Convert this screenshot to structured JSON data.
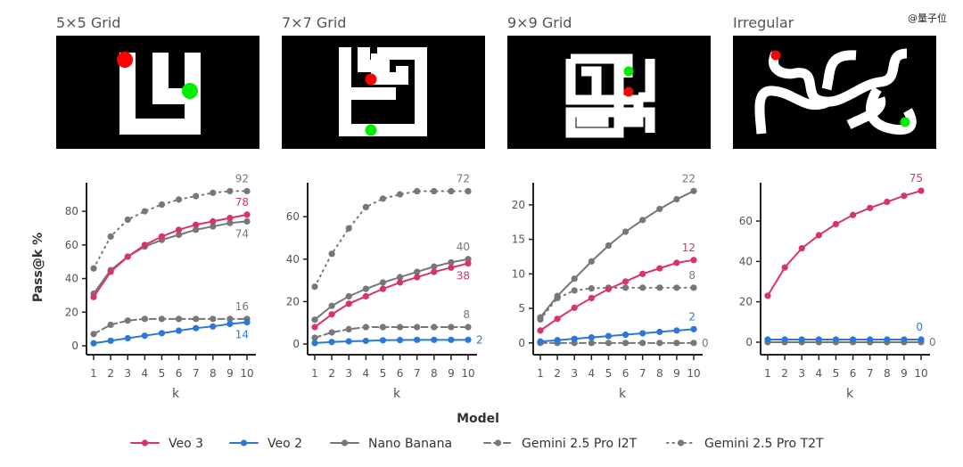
{
  "watermark": "@量子位",
  "panels": [
    {
      "title": "5×5 Grid"
    },
    {
      "title": "7×7 Grid"
    },
    {
      "title": "9×9 Grid"
    },
    {
      "title": "Irregular"
    }
  ],
  "colors": {
    "Veo 3": "#d6336f",
    "Veo 2": "#2a78d8",
    "Nano Banana": "#777777",
    "Gemini 2.5 Pro I2T": "#777777",
    "Gemini 2.5 Pro T2T": "#777777",
    "start_marker": "#ff0000",
    "goal_marker": "#00ee00"
  },
  "chart_data": [
    {
      "type": "line",
      "title": "5×5 Grid",
      "xlabel": "k",
      "ylabel": "Pass@k %",
      "x": [
        1,
        2,
        3,
        4,
        5,
        6,
        7,
        8,
        9,
        10
      ],
      "ylim": [
        -5.3,
        97
      ],
      "yticks": [
        0,
        20,
        40,
        60,
        80
      ],
      "series": [
        {
          "name": "Gemini 2.5 Pro T2T",
          "values": [
            46,
            65,
            75,
            80,
            84,
            87,
            89,
            91,
            92,
            92
          ],
          "end_label": "92"
        },
        {
          "name": "Gemini 2.5 Pro I2T",
          "values": [
            7,
            12.5,
            15,
            16,
            16,
            16,
            16,
            16,
            16,
            16
          ],
          "end_label": "16"
        },
        {
          "name": "Nano Banana",
          "values": [
            31,
            45,
            53,
            59,
            63,
            66,
            69,
            71,
            73,
            74
          ],
          "end_label": "74"
        },
        {
          "name": "Veo 2",
          "values": [
            1.5,
            3,
            4.5,
            6,
            7.5,
            9,
            10.5,
            11.5,
            13,
            14
          ],
          "end_label": "14"
        },
        {
          "name": "Veo 3",
          "values": [
            29,
            44,
            53,
            60,
            65,
            69,
            72,
            74,
            76,
            78
          ],
          "end_label": "78"
        }
      ]
    },
    {
      "type": "line",
      "title": "7×7 Grid",
      "xlabel": "k",
      "x": [
        1,
        2,
        3,
        4,
        5,
        6,
        7,
        8,
        9,
        10
      ],
      "ylim": [
        -5,
        76
      ],
      "yticks": [
        0,
        20,
        40,
        60
      ],
      "series": [
        {
          "name": "Gemini 2.5 Pro T2T",
          "values": [
            27,
            42.5,
            54.5,
            64.5,
            68.5,
            70.5,
            72,
            72,
            72,
            72
          ],
          "end_label": "72"
        },
        {
          "name": "Gemini 2.5 Pro I2T",
          "values": [
            3,
            5.5,
            7,
            8,
            8,
            8,
            8,
            8,
            8,
            8
          ],
          "end_label": "8"
        },
        {
          "name": "Nano Banana",
          "values": [
            11.5,
            18,
            22.5,
            26,
            29,
            31.5,
            34,
            36.5,
            38.5,
            40
          ],
          "end_label": "40"
        },
        {
          "name": "Veo 2",
          "values": [
            0.5,
            1,
            1.3,
            1.5,
            1.8,
            1.9,
            2,
            2,
            2,
            2
          ],
          "end_label": "2"
        },
        {
          "name": "Veo 3",
          "values": [
            8,
            14,
            19,
            22.5,
            26,
            29,
            31.5,
            34,
            36,
            38
          ],
          "end_label": "38"
        }
      ]
    },
    {
      "type": "line",
      "title": "9×9 Grid",
      "xlabel": "k",
      "x": [
        1,
        2,
        3,
        4,
        5,
        6,
        7,
        8,
        9,
        10
      ],
      "ylim": [
        -1.7,
        23.2
      ],
      "yticks": [
        0,
        5,
        10,
        15,
        20
      ],
      "series": [
        {
          "name": "Gemini 2.5 Pro T2T",
          "values": [
            3.4,
            6.5,
            7.6,
            7.9,
            8,
            8,
            8,
            8,
            8,
            8
          ],
          "end_label": "8"
        },
        {
          "name": "Gemini 2.5 Pro I2T",
          "values": [
            0,
            0,
            0,
            0,
            0,
            0,
            0,
            0,
            0,
            0
          ],
          "end_label": "0"
        },
        {
          "name": "Nano Banana",
          "values": [
            3.7,
            6.8,
            9.3,
            11.8,
            14.1,
            16.1,
            17.8,
            19.4,
            20.8,
            22
          ],
          "end_label": "22"
        },
        {
          "name": "Veo 2",
          "values": [
            0.2,
            0.4,
            0.6,
            0.8,
            1,
            1.2,
            1.4,
            1.6,
            1.8,
            2
          ],
          "end_label": "2"
        },
        {
          "name": "Veo 3",
          "values": [
            1.8,
            3.5,
            5.1,
            6.5,
            7.8,
            8.9,
            10,
            10.8,
            11.6,
            12
          ],
          "end_label": "12"
        }
      ]
    },
    {
      "type": "line",
      "title": "Irregular",
      "xlabel": "k",
      "x": [
        1,
        2,
        3,
        4,
        5,
        6,
        7,
        8,
        9,
        10
      ],
      "ylim": [
        -6.2,
        79
      ],
      "yticks": [
        0,
        20,
        40,
        60
      ],
      "series": [
        {
          "name": "Nano Banana",
          "values": [
            0,
            0,
            0,
            0,
            0,
            0,
            0,
            0,
            0,
            0
          ],
          "end_label": "0"
        },
        {
          "name": "Veo 2",
          "values": [
            0,
            0,
            0,
            0,
            0,
            0,
            0,
            0,
            0,
            0
          ],
          "end_label": "0"
        },
        {
          "name": "Veo 3",
          "values": [
            23,
            37,
            46.5,
            53,
            58.5,
            63,
            66.5,
            69.5,
            72.5,
            75
          ],
          "end_label": "75"
        }
      ]
    }
  ],
  "legend": {
    "title": "Model",
    "items": [
      {
        "name": "Veo 3",
        "style": "solid"
      },
      {
        "name": "Veo 2",
        "style": "solid"
      },
      {
        "name": "Nano Banana",
        "style": "solid"
      },
      {
        "name": "Gemini 2.5 Pro I2T",
        "style": "dashed"
      },
      {
        "name": "Gemini 2.5 Pro T2T",
        "style": "dotted"
      }
    ]
  }
}
